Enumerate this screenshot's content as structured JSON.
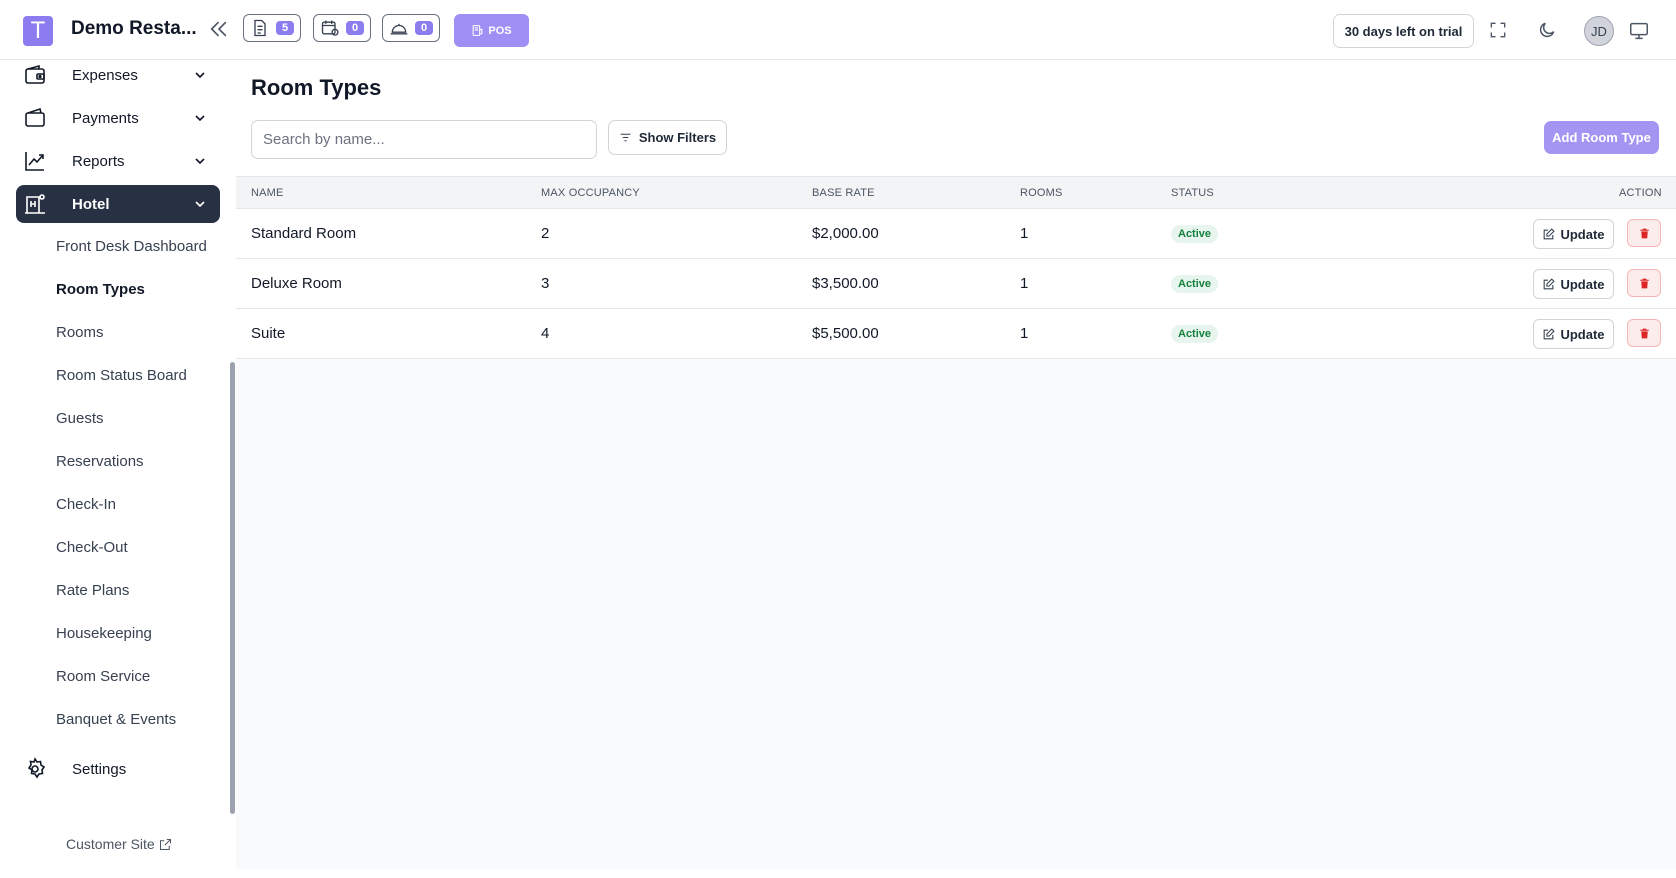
{
  "header": {
    "logo_letter": "T",
    "app_title": "Demo Resta...",
    "chips": [
      {
        "icon": "orders-icon",
        "count": "5"
      },
      {
        "icon": "reservations-icon",
        "count": "0"
      },
      {
        "icon": "waiter-icon",
        "count": "0"
      }
    ],
    "pos_label": "POS",
    "trial_text": "30 days left on trial",
    "avatar_initials": "JD"
  },
  "sidebar": {
    "top_items": [
      {
        "label": "Expenses",
        "icon": "wallet-icon"
      },
      {
        "label": "Payments",
        "icon": "card-icon"
      },
      {
        "label": "Reports",
        "icon": "chart-icon"
      },
      {
        "label": "Hotel",
        "icon": "hotel-icon",
        "active": true
      }
    ],
    "sub_items": [
      "Front Desk Dashboard",
      "Room Types",
      "Rooms",
      "Room Status Board",
      "Guests",
      "Reservations",
      "Check-In",
      "Check-Out",
      "Rate Plans",
      "Housekeeping",
      "Room Service",
      "Banquet & Events"
    ],
    "settings_label": "Settings",
    "customer_site_label": "Customer Site"
  },
  "main": {
    "title": "Room Types",
    "search_placeholder": "Search by name...",
    "show_filters_label": "Show Filters",
    "add_button_label": "Add Room Type",
    "columns": [
      "NAME",
      "MAX OCCUPANCY",
      "BASE RATE",
      "ROOMS",
      "STATUS",
      "ACTION"
    ],
    "rows": [
      {
        "name": "Standard Room",
        "max_occupancy": "2",
        "base_rate": "$2,000.00",
        "rooms": "1",
        "status": "Active"
      },
      {
        "name": "Deluxe Room",
        "max_occupancy": "3",
        "base_rate": "$3,500.00",
        "rooms": "1",
        "status": "Active"
      },
      {
        "name": "Suite",
        "max_occupancy": "4",
        "base_rate": "$5,500.00",
        "rooms": "1",
        "status": "Active"
      }
    ],
    "update_label": "Update"
  },
  "colors": {
    "accent": "#8b7cf0",
    "sidebar_active": "#283044",
    "status_green": "#15803d",
    "danger": "#dc2626"
  }
}
